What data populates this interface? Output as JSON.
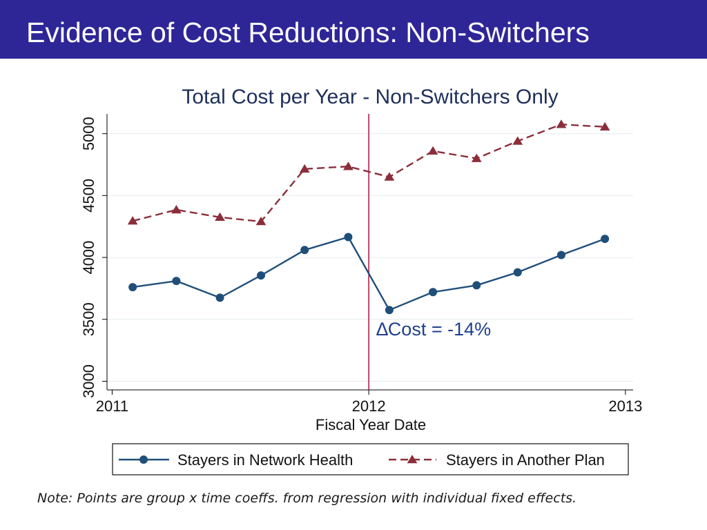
{
  "slide": {
    "title": "Evidence of Cost Reductions: Non-Switchers",
    "note": "Note: Points are group x time coeffs. from regression with individual fixed effects."
  },
  "colors": {
    "header_bg": "#2e2697",
    "series_network": "#1f4e79",
    "series_other": "#8b2e3a",
    "divider": "#b01e4a",
    "annotation": "#1f3f8f"
  },
  "chart_data": {
    "type": "line",
    "title": "Total Cost per Year - Non-Switchers Only",
    "xlabel": "Fiscal Year Date",
    "ylabel": "",
    "xlim": [
      2010.98,
      2013.03
    ],
    "ylim": [
      2930,
      5160
    ],
    "xticks": [
      2011,
      2012,
      2013
    ],
    "xtick_labels": [
      "2011",
      "2012",
      "2013"
    ],
    "yticks": [
      3000,
      3500,
      4000,
      4500,
      5000
    ],
    "ytick_labels": [
      "3000",
      "3500",
      "4000",
      "4500",
      "5000"
    ],
    "grid": true,
    "vline": 2012,
    "annotation": {
      "text": "∆Cost = -14%",
      "x": 2012.03,
      "y": 3420
    },
    "legend": {
      "position": "bottom",
      "entries": [
        "Stayers in Network Health",
        "Stayers in Another Plan"
      ]
    },
    "series": [
      {
        "name": "Stayers in Network Health",
        "marker": "circle",
        "dash": "solid",
        "x": [
          2011.08,
          2011.25,
          2011.42,
          2011.58,
          2011.75,
          2011.92,
          2012.08,
          2012.25,
          2012.42,
          2012.58,
          2012.75,
          2012.92
        ],
        "values": [
          3760,
          3810,
          3675,
          3855,
          4060,
          4165,
          3575,
          3720,
          3775,
          3880,
          4020,
          4150
        ]
      },
      {
        "name": "Stayers in Another Plan",
        "marker": "triangle",
        "dash": "dashed",
        "x": [
          2011.08,
          2011.25,
          2011.42,
          2011.58,
          2011.75,
          2011.92,
          2012.08,
          2012.25,
          2012.42,
          2012.58,
          2012.75,
          2012.92
        ],
        "values": [
          4295,
          4385,
          4325,
          4290,
          4715,
          4735,
          4650,
          4860,
          4800,
          4940,
          5075,
          5055
        ]
      }
    ]
  }
}
